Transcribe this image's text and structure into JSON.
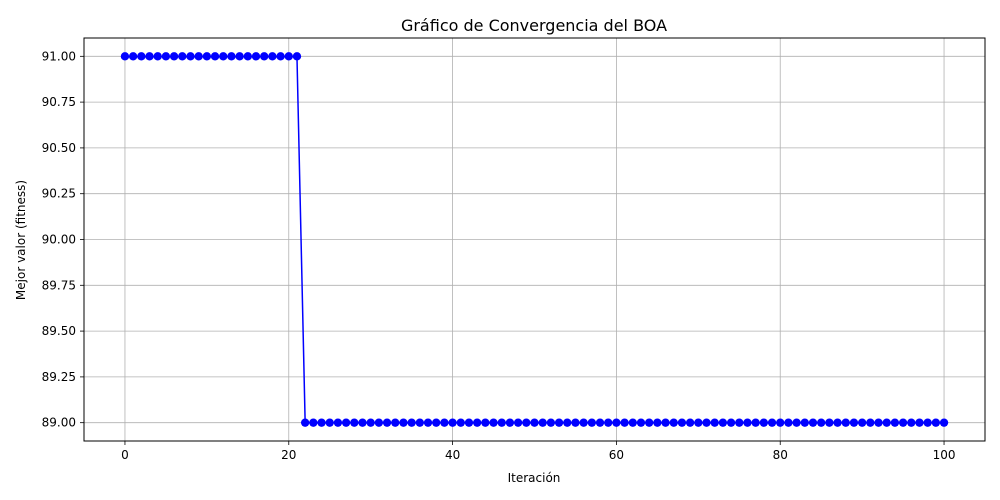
{
  "chart_data": {
    "type": "line",
    "title": "Gráfico de Convergencia del BOA",
    "xlabel": "Iteración",
    "ylabel": "Mejor valor (fitness)",
    "xlim": [
      -5,
      105
    ],
    "ylim": [
      88.9,
      91.1
    ],
    "xticks": [
      "0",
      "20",
      "40",
      "60",
      "80",
      "100"
    ],
    "yticks": [
      "89.00",
      "89.25",
      "89.50",
      "89.75",
      "90.00",
      "90.25",
      "90.50",
      "90.75",
      "91.00"
    ],
    "grid": true,
    "marker": "circle",
    "color": "#0000ff",
    "series": [
      {
        "x": [
          0,
          1,
          2,
          3,
          4,
          5,
          6,
          7,
          8,
          9,
          10,
          11,
          12,
          13,
          14,
          15,
          16,
          17,
          18,
          19,
          20,
          21,
          22,
          23,
          24,
          25,
          26,
          27,
          28,
          29,
          30,
          31,
          32,
          33,
          34,
          35,
          36,
          37,
          38,
          39,
          40,
          41,
          42,
          43,
          44,
          45,
          46,
          47,
          48,
          49,
          50,
          51,
          52,
          53,
          54,
          55,
          56,
          57,
          58,
          59,
          60,
          61,
          62,
          63,
          64,
          65,
          66,
          67,
          68,
          69,
          70,
          71,
          72,
          73,
          74,
          75,
          76,
          77,
          78,
          79,
          80,
          81,
          82,
          83,
          84,
          85,
          86,
          87,
          88,
          89,
          90,
          91,
          92,
          93,
          94,
          95,
          96,
          97,
          98,
          99,
          100
        ],
        "values": [
          91,
          91,
          91,
          91,
          91,
          91,
          91,
          91,
          91,
          91,
          91,
          91,
          91,
          91,
          91,
          91,
          91,
          91,
          91,
          91,
          91,
          91,
          89,
          89,
          89,
          89,
          89,
          89,
          89,
          89,
          89,
          89,
          89,
          89,
          89,
          89,
          89,
          89,
          89,
          89,
          89,
          89,
          89,
          89,
          89,
          89,
          89,
          89,
          89,
          89,
          89,
          89,
          89,
          89,
          89,
          89,
          89,
          89,
          89,
          89,
          89,
          89,
          89,
          89,
          89,
          89,
          89,
          89,
          89,
          89,
          89,
          89,
          89,
          89,
          89,
          89,
          89,
          89,
          89,
          89,
          89,
          89,
          89,
          89,
          89,
          89,
          89,
          89,
          89,
          89,
          89,
          89,
          89,
          89,
          89,
          89,
          89,
          89,
          89,
          89,
          89
        ]
      }
    ]
  }
}
